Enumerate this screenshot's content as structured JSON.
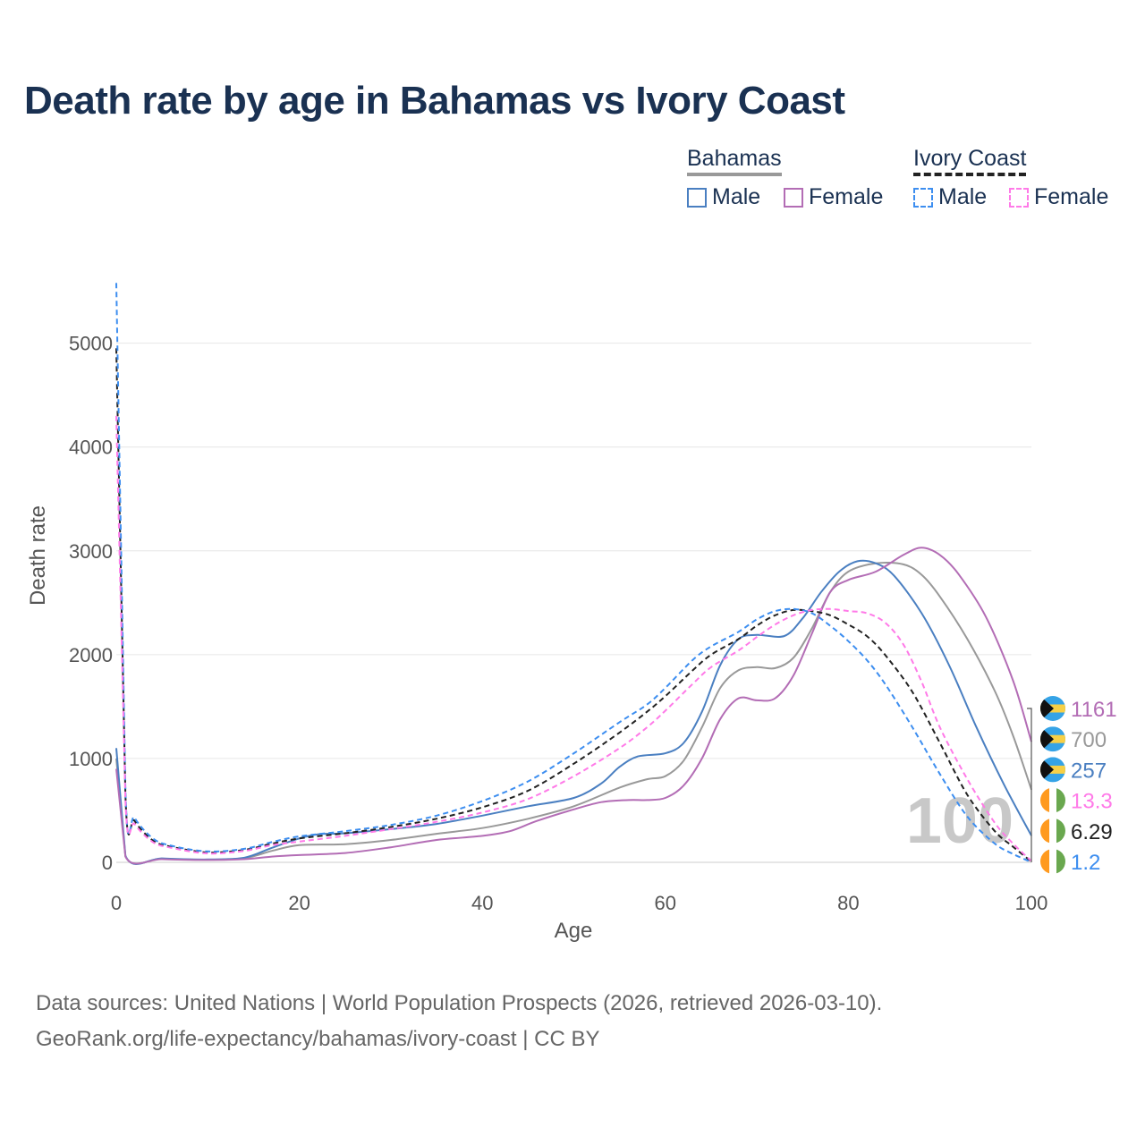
{
  "title": "Death rate by age in Bahamas vs Ivory Coast",
  "legend": {
    "groups": [
      {
        "name": "Bahamas",
        "line_style": "solid",
        "items": [
          {
            "label": "Male",
            "color": "#4a7fc1"
          },
          {
            "label": "Female",
            "color": "#b36db5"
          }
        ]
      },
      {
        "name": "Ivory Coast",
        "line_style": "dashed",
        "items": [
          {
            "label": "Male",
            "color": "#3d8ef0"
          },
          {
            "label": "Female",
            "color": "#ff7ae8"
          }
        ]
      }
    ]
  },
  "footer": {
    "source": "Data sources: United Nations | World Population Prospects (2026, retrieved 2026-03-10).",
    "url": "GeoRank.org/life-expectancy/bahamas/ivory-coast | CC BY"
  },
  "chart_data": {
    "type": "line",
    "xlabel": "Age",
    "ylabel": "Death rate",
    "xlim": [
      0,
      100
    ],
    "ylim": [
      0,
      5600
    ],
    "x_ticks": [
      0,
      20,
      40,
      60,
      80,
      100
    ],
    "y_ticks": [
      0,
      1000,
      2000,
      3000,
      4000,
      5000
    ],
    "age_watermark": "100",
    "series": [
      {
        "name": "Bahamas Total",
        "color": "#999999",
        "dash": false,
        "points": [
          [
            0,
            1000
          ],
          [
            1,
            60
          ],
          [
            5,
            35
          ],
          [
            10,
            25
          ],
          [
            14,
            40
          ],
          [
            17,
            110
          ],
          [
            20,
            165
          ],
          [
            25,
            175
          ],
          [
            30,
            215
          ],
          [
            35,
            275
          ],
          [
            40,
            330
          ],
          [
            45,
            420
          ],
          [
            50,
            540
          ],
          [
            55,
            720
          ],
          [
            58,
            800
          ],
          [
            60,
            830
          ],
          [
            62,
            980
          ],
          [
            64,
            1300
          ],
          [
            66,
            1680
          ],
          [
            68,
            1850
          ],
          [
            70,
            1880
          ],
          [
            72,
            1870
          ],
          [
            74,
            1970
          ],
          [
            76,
            2250
          ],
          [
            78,
            2600
          ],
          [
            80,
            2800
          ],
          [
            83,
            2880
          ],
          [
            86,
            2870
          ],
          [
            88,
            2770
          ],
          [
            90,
            2560
          ],
          [
            93,
            2150
          ],
          [
            96,
            1650
          ],
          [
            98,
            1220
          ],
          [
            100,
            700
          ]
        ],
        "end_value": "700"
      },
      {
        "name": "Bahamas Male",
        "color": "#4a7fc1",
        "dash": false,
        "points": [
          [
            0,
            1100
          ],
          [
            1,
            65
          ],
          [
            5,
            38
          ],
          [
            10,
            28
          ],
          [
            14,
            45
          ],
          [
            17,
            140
          ],
          [
            20,
            230
          ],
          [
            22,
            270
          ],
          [
            25,
            280
          ],
          [
            30,
            320
          ],
          [
            35,
            370
          ],
          [
            40,
            450
          ],
          [
            45,
            540
          ],
          [
            50,
            620
          ],
          [
            53,
            760
          ],
          [
            55,
            920
          ],
          [
            57,
            1020
          ],
          [
            60,
            1050
          ],
          [
            62,
            1150
          ],
          [
            64,
            1450
          ],
          [
            66,
            1900
          ],
          [
            68,
            2150
          ],
          [
            70,
            2190
          ],
          [
            73,
            2180
          ],
          [
            75,
            2350
          ],
          [
            77,
            2600
          ],
          [
            79,
            2800
          ],
          [
            81,
            2900
          ],
          [
            83,
            2880
          ],
          [
            85,
            2760
          ],
          [
            88,
            2400
          ],
          [
            91,
            1900
          ],
          [
            94,
            1300
          ],
          [
            97,
            750
          ],
          [
            100,
            257
          ]
        ],
        "end_value": "257"
      },
      {
        "name": "Bahamas Female",
        "color": "#b36db5",
        "dash": false,
        "points": [
          [
            0,
            900
          ],
          [
            1,
            55
          ],
          [
            5,
            30
          ],
          [
            10,
            22
          ],
          [
            14,
            30
          ],
          [
            17,
            55
          ],
          [
            20,
            70
          ],
          [
            25,
            90
          ],
          [
            30,
            145
          ],
          [
            35,
            215
          ],
          [
            40,
            255
          ],
          [
            43,
            300
          ],
          [
            46,
            400
          ],
          [
            50,
            510
          ],
          [
            53,
            580
          ],
          [
            56,
            600
          ],
          [
            58,
            600
          ],
          [
            60,
            620
          ],
          [
            62,
            740
          ],
          [
            64,
            1000
          ],
          [
            66,
            1380
          ],
          [
            68,
            1580
          ],
          [
            70,
            1560
          ],
          [
            72,
            1580
          ],
          [
            74,
            1800
          ],
          [
            76,
            2200
          ],
          [
            78,
            2600
          ],
          [
            80,
            2720
          ],
          [
            83,
            2800
          ],
          [
            86,
            2960
          ],
          [
            88,
            3030
          ],
          [
            90,
            2960
          ],
          [
            92,
            2780
          ],
          [
            95,
            2370
          ],
          [
            98,
            1750
          ],
          [
            100,
            1161
          ]
        ],
        "end_value": "1161"
      },
      {
        "name": "Ivory Coast Total",
        "color": "#222222",
        "dash": true,
        "points": [
          [
            0,
            4950
          ],
          [
            1,
            650
          ],
          [
            2,
            400
          ],
          [
            4,
            210
          ],
          [
            6,
            150
          ],
          [
            10,
            95
          ],
          [
            14,
            120
          ],
          [
            17,
            180
          ],
          [
            20,
            230
          ],
          [
            25,
            280
          ],
          [
            30,
            340
          ],
          [
            35,
            420
          ],
          [
            40,
            530
          ],
          [
            45,
            690
          ],
          [
            50,
            950
          ],
          [
            55,
            1250
          ],
          [
            58,
            1450
          ],
          [
            60,
            1600
          ],
          [
            63,
            1850
          ],
          [
            65,
            2000
          ],
          [
            68,
            2150
          ],
          [
            70,
            2280
          ],
          [
            72,
            2380
          ],
          [
            74,
            2430
          ],
          [
            76,
            2420
          ],
          [
            78,
            2380
          ],
          [
            80,
            2290
          ],
          [
            82,
            2180
          ],
          [
            84,
            2000
          ],
          [
            87,
            1640
          ],
          [
            90,
            1150
          ],
          [
            93,
            650
          ],
          [
            96,
            300
          ],
          [
            98,
            150
          ],
          [
            100,
            6.29
          ]
        ],
        "end_value": "6.29"
      },
      {
        "name": "Ivory Coast Male",
        "color": "#3d8ef0",
        "dash": true,
        "points": [
          [
            0,
            5580
          ],
          [
            1,
            700
          ],
          [
            2,
            430
          ],
          [
            4,
            230
          ],
          [
            6,
            160
          ],
          [
            10,
            105
          ],
          [
            14,
            130
          ],
          [
            17,
            195
          ],
          [
            20,
            250
          ],
          [
            25,
            300
          ],
          [
            30,
            360
          ],
          [
            35,
            450
          ],
          [
            40,
            590
          ],
          [
            45,
            780
          ],
          [
            50,
            1050
          ],
          [
            55,
            1350
          ],
          [
            58,
            1520
          ],
          [
            60,
            1680
          ],
          [
            63,
            1950
          ],
          [
            65,
            2080
          ],
          [
            68,
            2220
          ],
          [
            70,
            2340
          ],
          [
            72,
            2420
          ],
          [
            74,
            2440
          ],
          [
            76,
            2400
          ],
          [
            78,
            2280
          ],
          [
            80,
            2130
          ],
          [
            82,
            1950
          ],
          [
            84,
            1720
          ],
          [
            87,
            1300
          ],
          [
            90,
            850
          ],
          [
            93,
            440
          ],
          [
            96,
            180
          ],
          [
            98,
            80
          ],
          [
            100,
            1.2
          ]
        ],
        "end_value": "1.2"
      },
      {
        "name": "Ivory Coast Female",
        "color": "#ff7ae8",
        "dash": true,
        "points": [
          [
            0,
            4300
          ],
          [
            1,
            600
          ],
          [
            2,
            370
          ],
          [
            4,
            195
          ],
          [
            6,
            140
          ],
          [
            10,
            85
          ],
          [
            14,
            110
          ],
          [
            17,
            165
          ],
          [
            20,
            200
          ],
          [
            25,
            255
          ],
          [
            30,
            320
          ],
          [
            35,
            390
          ],
          [
            40,
            480
          ],
          [
            45,
            610
          ],
          [
            50,
            830
          ],
          [
            55,
            1100
          ],
          [
            58,
            1300
          ],
          [
            60,
            1460
          ],
          [
            63,
            1720
          ],
          [
            65,
            1880
          ],
          [
            68,
            2040
          ],
          [
            70,
            2170
          ],
          [
            72,
            2290
          ],
          [
            74,
            2380
          ],
          [
            76,
            2430
          ],
          [
            78,
            2440
          ],
          [
            80,
            2420
          ],
          [
            82,
            2400
          ],
          [
            84,
            2310
          ],
          [
            86,
            2100
          ],
          [
            88,
            1740
          ],
          [
            90,
            1300
          ],
          [
            93,
            800
          ],
          [
            96,
            380
          ],
          [
            98,
            180
          ],
          [
            100,
            13.3
          ]
        ],
        "end_value": "13.3"
      }
    ],
    "end_labels": [
      {
        "series": "Bahamas Female",
        "value": "1161",
        "color": "#b36db5",
        "flag": "bahamas"
      },
      {
        "series": "Bahamas Total",
        "value": "700",
        "color": "#999999",
        "flag": "bahamas"
      },
      {
        "series": "Bahamas Male",
        "value": "257",
        "color": "#4a7fc1",
        "flag": "bahamas"
      },
      {
        "series": "Ivory Coast Female",
        "value": "13.3",
        "color": "#ff7ae8",
        "flag": "ivory-coast"
      },
      {
        "series": "Ivory Coast Total",
        "value": "6.29",
        "color": "#222222",
        "flag": "ivory-coast"
      },
      {
        "series": "Ivory Coast Male",
        "value": "1.2",
        "color": "#3d8ef0",
        "flag": "ivory-coast"
      }
    ]
  }
}
